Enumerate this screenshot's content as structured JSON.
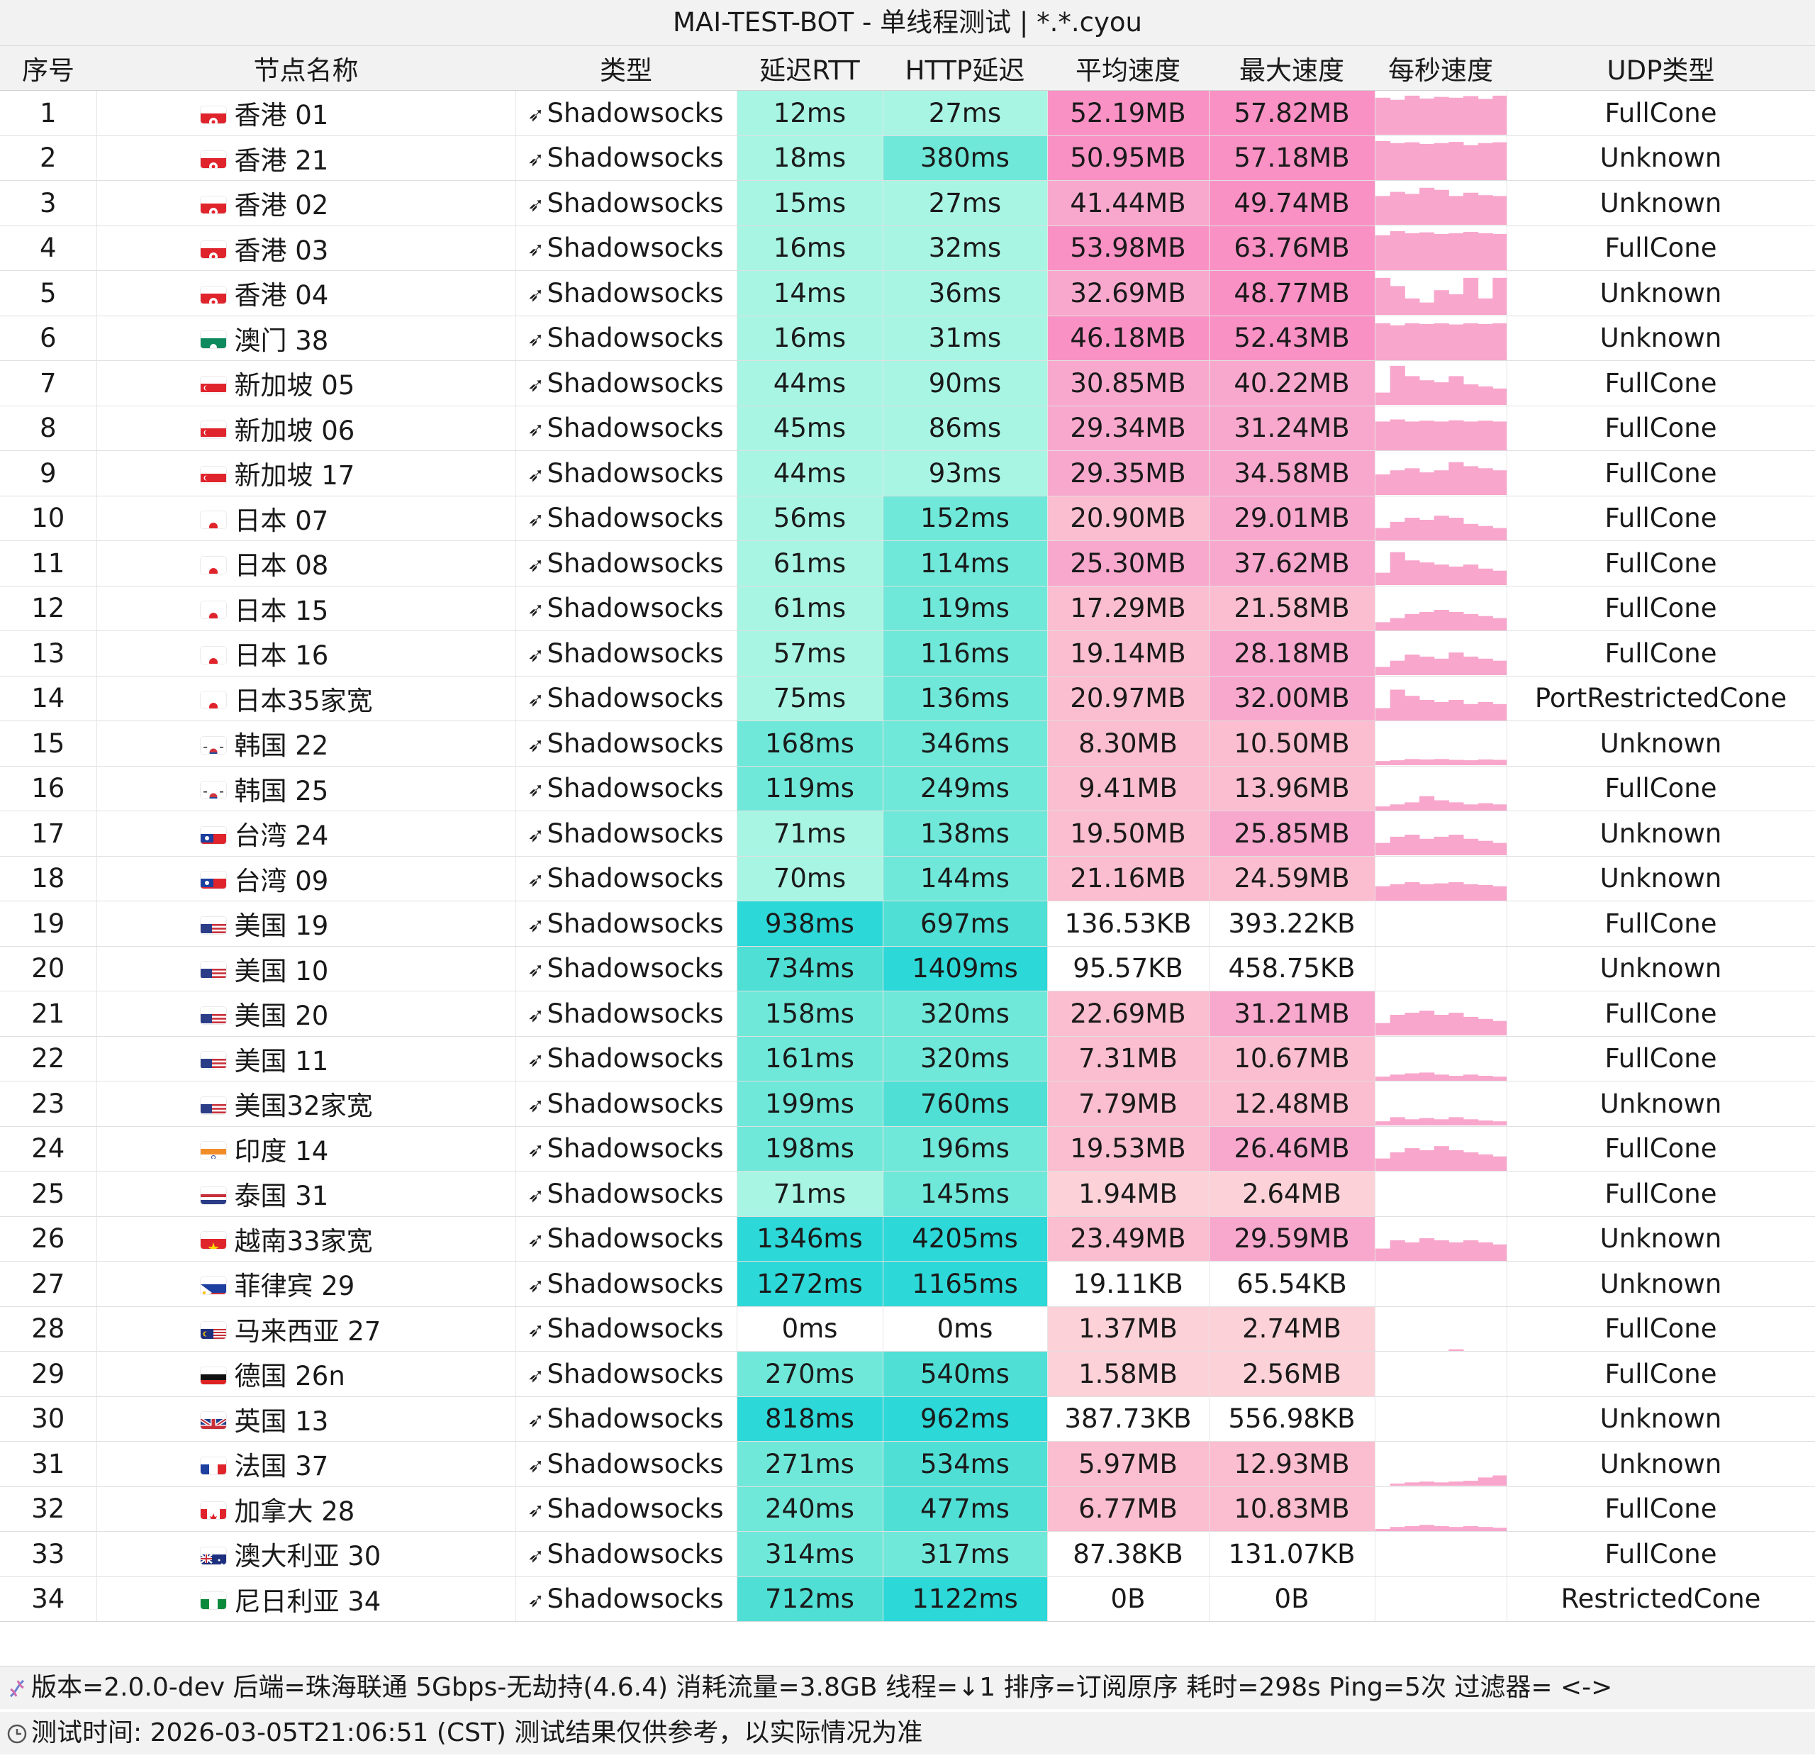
{
  "title": "MAI-TEST-BOT - 单线程测试 | *.*.cyou",
  "headers": [
    "序号",
    "节点名称",
    "类型",
    "延迟RTT",
    "HTTP延迟",
    "平均速度",
    "最大速度",
    "每秒速度",
    "UDP类型"
  ],
  "type_icon": "send-arrow-icon",
  "rows": [
    {
      "id": "1",
      "flag": "hk",
      "name": "香港 01",
      "type": "Shadowsocks",
      "rtt": "12ms",
      "http": "27ms",
      "avg": "52.19MB",
      "max": "57.82MB",
      "udp": "FullCone",
      "spark": [
        0.9,
        0.85,
        0.95,
        0.88,
        0.92,
        0.9,
        0.94,
        0.87,
        0.95
      ]
    },
    {
      "id": "2",
      "flag": "hk",
      "name": "香港 21",
      "type": "Shadowsocks",
      "rtt": "18ms",
      "http": "380ms",
      "avg": "50.95MB",
      "max": "57.18MB",
      "udp": "Unknown",
      "spark": [
        0.95,
        0.9,
        0.92,
        0.88,
        0.9,
        0.93,
        0.85,
        0.9,
        0.92
      ]
    },
    {
      "id": "3",
      "flag": "hk",
      "name": "香港 02",
      "type": "Shadowsocks",
      "rtt": "15ms",
      "http": "27ms",
      "avg": "41.44MB",
      "max": "49.74MB",
      "udp": "Unknown",
      "spark": [
        0.7,
        0.8,
        0.75,
        0.9,
        0.85,
        0.7,
        0.78,
        0.72,
        0.7
      ]
    },
    {
      "id": "4",
      "flag": "hk",
      "name": "香港 03",
      "type": "Shadowsocks",
      "rtt": "16ms",
      "http": "32ms",
      "avg": "53.98MB",
      "max": "63.76MB",
      "udp": "FullCone",
      "spark": [
        0.85,
        0.95,
        0.9,
        0.92,
        0.88,
        0.9,
        0.93,
        0.9,
        0.88
      ]
    },
    {
      "id": "5",
      "flag": "hk",
      "name": "香港 04",
      "type": "Shadowsocks",
      "rtt": "14ms",
      "http": "36ms",
      "avg": "32.69MB",
      "max": "48.77MB",
      "udp": "Unknown",
      "spark": [
        0.9,
        0.7,
        0.4,
        0.3,
        0.6,
        0.5,
        0.9,
        0.4,
        0.9
      ]
    },
    {
      "id": "6",
      "flag": "mo",
      "name": "澳门 38",
      "type": "Shadowsocks",
      "rtt": "16ms",
      "http": "31ms",
      "avg": "46.18MB",
      "max": "52.43MB",
      "udp": "Unknown",
      "spark": [
        0.9,
        0.85,
        0.9,
        0.88,
        0.9,
        0.87,
        0.9,
        0.88,
        0.9
      ]
    },
    {
      "id": "7",
      "flag": "sg",
      "name": "新加坡 05",
      "type": "Shadowsocks",
      "rtt": "44ms",
      "http": "90ms",
      "avg": "30.85MB",
      "max": "40.22MB",
      "udp": "FullCone",
      "spark": [
        0.3,
        0.95,
        0.7,
        0.6,
        0.55,
        0.7,
        0.5,
        0.45,
        0.4
      ]
    },
    {
      "id": "8",
      "flag": "sg",
      "name": "新加坡 06",
      "type": "Shadowsocks",
      "rtt": "45ms",
      "http": "86ms",
      "avg": "29.34MB",
      "max": "31.24MB",
      "udp": "FullCone",
      "spark": [
        0.7,
        0.75,
        0.7,
        0.72,
        0.7,
        0.73,
        0.7,
        0.72,
        0.7
      ]
    },
    {
      "id": "9",
      "flag": "sg",
      "name": "新加坡 17",
      "type": "Shadowsocks",
      "rtt": "44ms",
      "http": "93ms",
      "avg": "29.35MB",
      "max": "34.58MB",
      "udp": "FullCone",
      "spark": [
        0.5,
        0.6,
        0.65,
        0.55,
        0.6,
        0.8,
        0.7,
        0.65,
        0.6
      ]
    },
    {
      "id": "10",
      "flag": "jp",
      "name": "日本 07",
      "type": "Shadowsocks",
      "rtt": "56ms",
      "http": "152ms",
      "avg": "20.90MB",
      "max": "29.01MB",
      "udp": "FullCone",
      "spark": [
        0.3,
        0.45,
        0.55,
        0.5,
        0.6,
        0.55,
        0.4,
        0.35,
        0.3
      ]
    },
    {
      "id": "11",
      "flag": "jp",
      "name": "日本 08",
      "type": "Shadowsocks",
      "rtt": "61ms",
      "http": "114ms",
      "avg": "25.30MB",
      "max": "37.62MB",
      "udp": "FullCone",
      "spark": [
        0.3,
        0.8,
        0.6,
        0.55,
        0.5,
        0.45,
        0.5,
        0.4,
        0.35
      ]
    },
    {
      "id": "12",
      "flag": "jp",
      "name": "日本 15",
      "type": "Shadowsocks",
      "rtt": "61ms",
      "http": "119ms",
      "avg": "17.29MB",
      "max": "21.58MB",
      "udp": "FullCone",
      "spark": [
        0.2,
        0.3,
        0.4,
        0.45,
        0.5,
        0.45,
        0.4,
        0.35,
        0.3
      ]
    },
    {
      "id": "13",
      "flag": "jp",
      "name": "日本 16",
      "type": "Shadowsocks",
      "rtt": "57ms",
      "http": "116ms",
      "avg": "19.14MB",
      "max": "28.18MB",
      "udp": "FullCone",
      "spark": [
        0.2,
        0.35,
        0.5,
        0.45,
        0.4,
        0.55,
        0.45,
        0.4,
        0.35
      ]
    },
    {
      "id": "14",
      "flag": "jp",
      "name": "日本35家宽",
      "type": "Shadowsocks",
      "rtt": "75ms",
      "http": "136ms",
      "avg": "20.97MB",
      "max": "32.00MB",
      "udp": "PortRestrictedCone",
      "spark": [
        0.3,
        0.75,
        0.6,
        0.5,
        0.45,
        0.5,
        0.4,
        0.45,
        0.4
      ]
    },
    {
      "id": "15",
      "flag": "kr",
      "name": "韩国 22",
      "type": "Shadowsocks",
      "rtt": "168ms",
      "http": "346ms",
      "avg": "8.30MB",
      "max": "10.50MB",
      "udp": "Unknown",
      "spark": [
        0.1,
        0.12,
        0.15,
        0.14,
        0.15,
        0.13,
        0.12,
        0.14,
        0.13
      ]
    },
    {
      "id": "16",
      "flag": "kr",
      "name": "韩国 25",
      "type": "Shadowsocks",
      "rtt": "119ms",
      "http": "249ms",
      "avg": "9.41MB",
      "max": "13.96MB",
      "udp": "FullCone",
      "spark": [
        0.1,
        0.15,
        0.2,
        0.35,
        0.25,
        0.2,
        0.15,
        0.18,
        0.15
      ]
    },
    {
      "id": "17",
      "flag": "tw",
      "name": "台湾 24",
      "type": "Shadowsocks",
      "rtt": "71ms",
      "http": "138ms",
      "avg": "19.50MB",
      "max": "25.85MB",
      "udp": "Unknown",
      "spark": [
        0.3,
        0.45,
        0.5,
        0.4,
        0.45,
        0.5,
        0.4,
        0.35,
        0.3
      ]
    },
    {
      "id": "18",
      "flag": "tw",
      "name": "台湾 09",
      "type": "Shadowsocks",
      "rtt": "70ms",
      "http": "144ms",
      "avg": "21.16MB",
      "max": "24.59MB",
      "udp": "Unknown",
      "spark": [
        0.35,
        0.4,
        0.45,
        0.4,
        0.42,
        0.45,
        0.4,
        0.38,
        0.35
      ]
    },
    {
      "id": "19",
      "flag": "us",
      "name": "美国 19",
      "type": "Shadowsocks",
      "rtt": "938ms",
      "http": "697ms",
      "avg": "136.53KB",
      "max": "393.22KB",
      "udp": "FullCone",
      "spark": []
    },
    {
      "id": "20",
      "flag": "us",
      "name": "美国 10",
      "type": "Shadowsocks",
      "rtt": "734ms",
      "http": "1409ms",
      "avg": "95.57KB",
      "max": "458.75KB",
      "udp": "Unknown",
      "spark": []
    },
    {
      "id": "21",
      "flag": "us",
      "name": "美国 20",
      "type": "Shadowsocks",
      "rtt": "158ms",
      "http": "320ms",
      "avg": "22.69MB",
      "max": "31.21MB",
      "udp": "FullCone",
      "spark": [
        0.3,
        0.5,
        0.55,
        0.6,
        0.5,
        0.55,
        0.45,
        0.4,
        0.35
      ]
    },
    {
      "id": "22",
      "flag": "us",
      "name": "美国 11",
      "type": "Shadowsocks",
      "rtt": "161ms",
      "http": "320ms",
      "avg": "7.31MB",
      "max": "10.67MB",
      "udp": "FullCone",
      "spark": [
        0.1,
        0.15,
        0.18,
        0.2,
        0.15,
        0.12,
        0.15,
        0.12,
        0.1
      ]
    },
    {
      "id": "23",
      "flag": "us",
      "name": "美国32家宽",
      "type": "Shadowsocks",
      "rtt": "199ms",
      "http": "760ms",
      "avg": "7.79MB",
      "max": "12.48MB",
      "udp": "Unknown",
      "spark": [
        0.1,
        0.2,
        0.15,
        0.18,
        0.15,
        0.2,
        0.15,
        0.12,
        0.1
      ]
    },
    {
      "id": "24",
      "flag": "in",
      "name": "印度 14",
      "type": "Shadowsocks",
      "rtt": "198ms",
      "http": "196ms",
      "avg": "19.53MB",
      "max": "26.46MB",
      "udp": "FullCone",
      "spark": [
        0.3,
        0.45,
        0.55,
        0.5,
        0.6,
        0.5,
        0.45,
        0.4,
        0.35
      ]
    },
    {
      "id": "25",
      "flag": "th",
      "name": "泰国 31",
      "type": "Shadowsocks",
      "rtt": "71ms",
      "http": "145ms",
      "avg": "1.94MB",
      "max": "2.64MB",
      "udp": "FullCone",
      "spark": []
    },
    {
      "id": "26",
      "flag": "vn",
      "name": "越南33家宽",
      "type": "Shadowsocks",
      "rtt": "1346ms",
      "http": "4205ms",
      "avg": "23.49MB",
      "max": "29.59MB",
      "udp": "Unknown",
      "spark": [
        0.3,
        0.5,
        0.45,
        0.55,
        0.5,
        0.45,
        0.5,
        0.45,
        0.4
      ]
    },
    {
      "id": "27",
      "flag": "ph",
      "name": "菲律宾 29",
      "type": "Shadowsocks",
      "rtt": "1272ms",
      "http": "1165ms",
      "avg": "19.11KB",
      "max": "65.54KB",
      "udp": "Unknown",
      "spark": []
    },
    {
      "id": "28",
      "flag": "my",
      "name": "马来西亚 27",
      "type": "Shadowsocks",
      "rtt": "0ms",
      "http": "0ms",
      "avg": "1.37MB",
      "max": "2.74MB",
      "udp": "FullCone",
      "spark": [
        0,
        0,
        0,
        0,
        0,
        0.04,
        0,
        0,
        0
      ]
    },
    {
      "id": "29",
      "flag": "de",
      "name": "德国 26n",
      "type": "Shadowsocks",
      "rtt": "270ms",
      "http": "540ms",
      "avg": "1.58MB",
      "max": "2.56MB",
      "udp": "FullCone",
      "spark": []
    },
    {
      "id": "30",
      "flag": "gb",
      "name": "英国 13",
      "type": "Shadowsocks",
      "rtt": "818ms",
      "http": "962ms",
      "avg": "387.73KB",
      "max": "556.98KB",
      "udp": "Unknown",
      "spark": []
    },
    {
      "id": "31",
      "flag": "fr",
      "name": "法国 37",
      "type": "Shadowsocks",
      "rtt": "271ms",
      "http": "534ms",
      "avg": "5.97MB",
      "max": "12.93MB",
      "udp": "Unknown",
      "spark": [
        0,
        0.05,
        0.08,
        0.1,
        0.08,
        0.1,
        0.12,
        0.2,
        0.25
      ]
    },
    {
      "id": "32",
      "flag": "ca",
      "name": "加拿大 28",
      "type": "Shadowsocks",
      "rtt": "240ms",
      "http": "477ms",
      "avg": "6.77MB",
      "max": "10.83MB",
      "udp": "FullCone",
      "spark": [
        0.05,
        0.1,
        0.12,
        0.15,
        0.12,
        0.1,
        0.12,
        0.1,
        0.08
      ]
    },
    {
      "id": "33",
      "flag": "au",
      "name": "澳大利亚 30",
      "type": "Shadowsocks",
      "rtt": "314ms",
      "http": "317ms",
      "avg": "87.38KB",
      "max": "131.07KB",
      "udp": "FullCone",
      "spark": []
    },
    {
      "id": "34",
      "flag": "ng",
      "name": "尼日利亚 34",
      "type": "Shadowsocks",
      "rtt": "712ms",
      "http": "1122ms",
      "avg": "0B",
      "max": "0B",
      "udp": "RestrictedCone",
      "spark": []
    }
  ],
  "footer": {
    "line1": "版本=2.0.0-dev  后端=珠海联通 5Gbps-无劫持(4.6.4) 消耗流量=3.8GB  线程=↓1  排序=订阅原序  耗时=298s  Ping=5次  过滤器= <->",
    "line2": "测试时间: 2026-03-05T21:06:51 (CST)  测试结果仅供参考，以实际情况为准",
    "icon1": "dna-icon",
    "icon2": "clock-icon"
  },
  "colors": {
    "teal_light": "#a8f5e4",
    "teal_mid": "#6fe8d9",
    "teal_dark": "#2dd8d8",
    "pink_strong": "#f991c4",
    "pink_mid": "#f9a8cd",
    "pink_light": "#fbbdd0",
    "pink_pale": "#fcd1d8",
    "spark": "#f8a6cc"
  }
}
